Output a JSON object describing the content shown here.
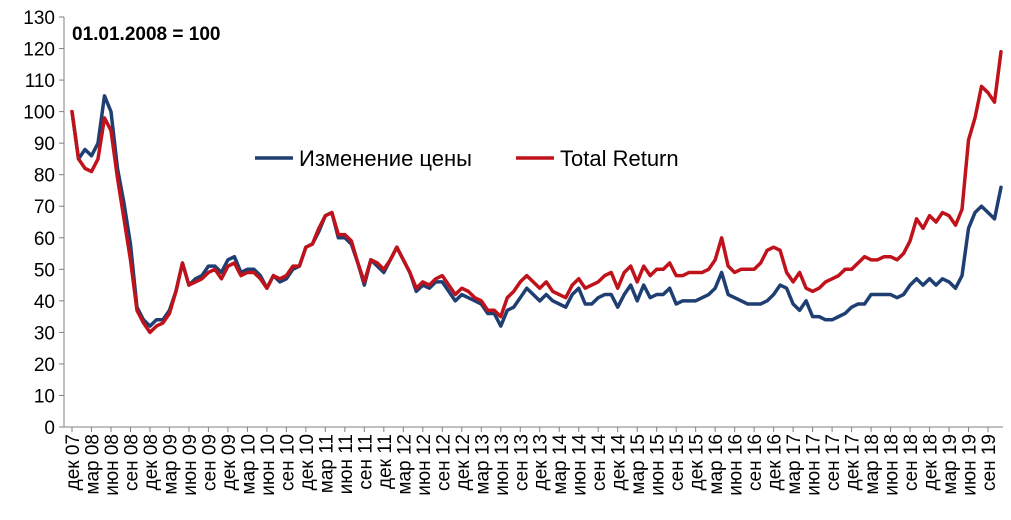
{
  "chart_data": {
    "type": "line",
    "title": "",
    "annotation": "01.01.2008 = 100",
    "xlabel": "",
    "ylabel": "",
    "ylim": [
      0,
      130
    ],
    "yticks": [
      0,
      10,
      20,
      30,
      40,
      50,
      60,
      70,
      80,
      90,
      100,
      110,
      120,
      130
    ],
    "grid": false,
    "legend_position": "center-left",
    "x_tick_labels": [
      "дек 07",
      "мар 08",
      "июн 08",
      "сен 08",
      "дек 08",
      "мар 09",
      "июн 09",
      "сен 09",
      "дек 09",
      "мар 10",
      "июн 10",
      "сен 10",
      "дек 10",
      "мар 11",
      "июн 11",
      "сен 11",
      "дек 11",
      "мар 12",
      "июн 12",
      "сен 12",
      "дек 12",
      "мар 13",
      "июн 13",
      "сен 13",
      "дек 13",
      "мар 14",
      "июн 14",
      "сен 14",
      "дек 14",
      "мар 15",
      "июн 15",
      "сен 15",
      "дек 15",
      "мар 16",
      "июн 16",
      "сен 16",
      "дек 16",
      "мар 17",
      "июн 17",
      "сен 17",
      "дек 17",
      "мар 18",
      "июн 18",
      "сен 18",
      "дек 18",
      "мар 19",
      "июн 19",
      "сен 19"
    ],
    "series": [
      {
        "name": "Изменение цены",
        "color": "#1f3f73",
        "values": [
          100,
          85,
          88,
          86,
          90,
          105,
          100,
          82,
          71,
          58,
          38,
          34,
          32,
          34,
          34,
          37,
          43,
          52,
          45,
          47,
          48,
          51,
          51,
          49,
          53,
          54,
          49,
          50,
          50,
          48,
          44,
          48,
          46,
          47,
          50,
          51,
          57,
          58,
          62,
          67,
          68,
          60,
          60,
          58,
          52,
          45,
          53,
          51,
          49,
          53,
          57,
          53,
          49,
          43,
          45,
          44,
          46,
          46,
          43,
          40,
          42,
          41,
          40,
          39,
          36,
          36,
          32,
          37,
          38,
          41,
          44,
          42,
          40,
          42,
          40,
          39,
          38,
          42,
          44,
          39,
          39,
          41,
          42,
          42,
          38,
          42,
          45,
          40,
          45,
          41,
          42,
          42,
          44,
          39,
          40,
          40,
          40,
          41,
          42,
          44,
          49,
          42,
          41,
          40,
          39,
          39,
          39,
          40,
          42,
          45,
          44,
          39,
          37,
          40,
          35,
          35,
          34,
          34,
          35,
          36,
          38,
          39,
          39,
          42,
          42,
          42,
          42,
          41,
          42,
          45,
          47,
          45,
          47,
          45,
          47,
          46,
          44,
          48,
          63,
          68,
          70,
          68,
          66,
          76
        ]
      },
      {
        "name": "Total Return",
        "color": "#c0121b",
        "values": [
          100,
          85,
          82,
          81,
          85,
          98,
          94,
          79,
          66,
          53,
          37,
          33,
          30,
          32,
          33,
          36,
          43,
          52,
          45,
          46,
          47,
          49,
          50,
          47,
          51,
          52,
          48,
          49,
          49,
          47,
          44,
          48,
          47,
          48,
          51,
          51,
          57,
          58,
          63,
          67,
          68,
          61,
          61,
          59,
          52,
          46,
          53,
          52,
          50,
          53,
          57,
          53,
          49,
          44,
          46,
          45,
          47,
          48,
          45,
          42,
          44,
          43,
          41,
          40,
          37,
          37,
          35,
          41,
          43,
          46,
          48,
          46,
          44,
          46,
          43,
          42,
          41,
          45,
          47,
          44,
          45,
          46,
          48,
          49,
          44,
          49,
          51,
          46,
          51,
          48,
          50,
          50,
          52,
          48,
          48,
          49,
          49,
          49,
          50,
          53,
          60,
          51,
          49,
          50,
          50,
          50,
          52,
          56,
          57,
          56,
          49,
          46,
          49,
          44,
          43,
          44,
          46,
          47,
          48,
          50,
          50,
          52,
          54,
          53,
          53,
          54,
          54,
          53,
          55,
          59,
          66,
          63,
          67,
          65,
          68,
          67,
          64,
          69,
          91,
          98,
          108,
          106,
          103,
          119
        ]
      }
    ]
  }
}
